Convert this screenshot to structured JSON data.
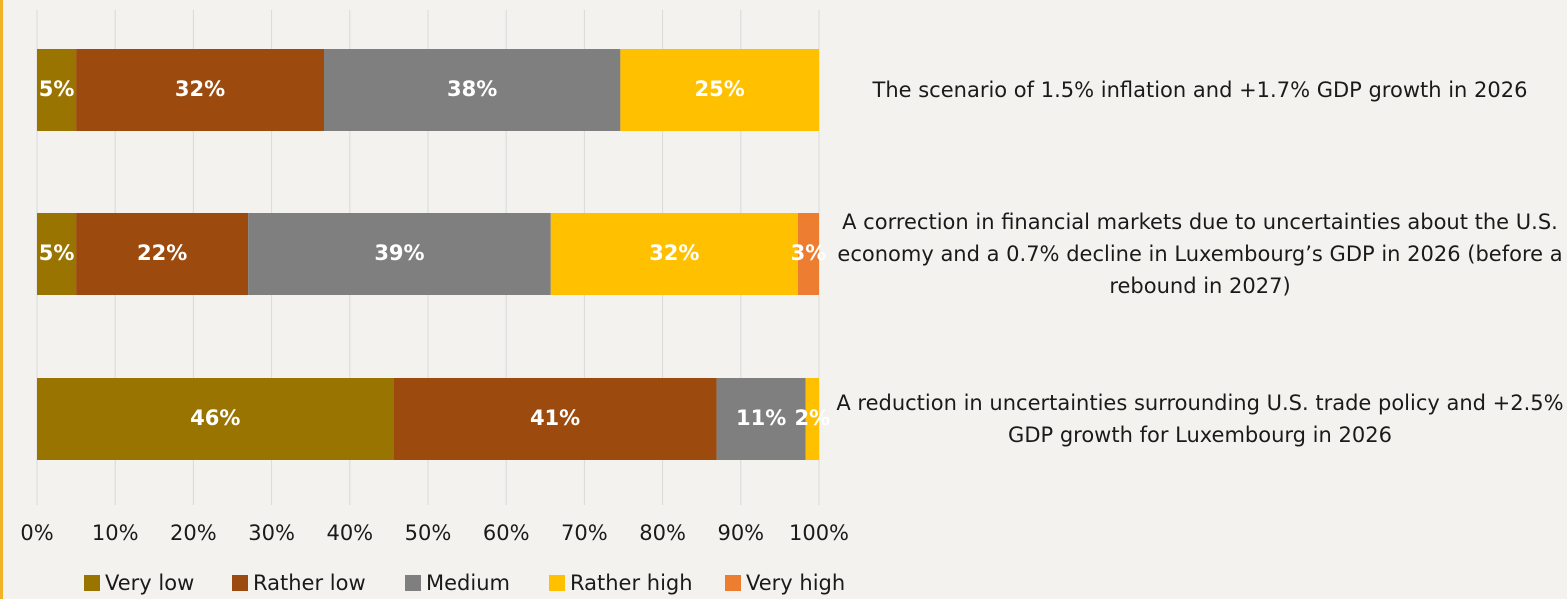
{
  "chart_data": {
    "type": "stacked-barh",
    "categories": [
      "The scenario of 1.5% inflation and +1.7% GDP growth in 2026",
      "A correction in financial markets due to uncertainties about the U.S. economy and a 0.7% decline in Luxembourg’s GDP in 2026 (before a rebound in 2027)",
      "A reduction in uncertainties surrounding U.S. trade policy and +2.5% GDP growth for Luxembourg in 2026"
    ],
    "series": [
      {
        "name": "Very low",
        "color": "#9a7400",
        "values": [
          5,
          5,
          45.6
        ],
        "value_labels": [
          "5%",
          "5%",
          "46%"
        ]
      },
      {
        "name": "Rather low",
        "color": "#9c4a0e",
        "values": [
          31.7,
          22,
          41.3
        ],
        "value_labels": [
          "32%",
          "22%",
          "41%"
        ]
      },
      {
        "name": "Medium",
        "color": "#7f7f7f",
        "values": [
          37.9,
          38.7,
          11.4
        ],
        "value_labels": [
          "38%",
          "39%",
          "11%"
        ]
      },
      {
        "name": "Rather high",
        "color": "#ffc000",
        "values": [
          25.4,
          31.6,
          1.7
        ],
        "value_labels": [
          "25%",
          "32%",
          "2%"
        ]
      },
      {
        "name": "Very high",
        "color": "#ed7d31",
        "values": [
          null,
          2.7,
          null
        ],
        "value_labels": [
          null,
          "3%",
          null
        ]
      }
    ],
    "xlim": [
      0,
      100
    ],
    "xticks": [
      {
        "value": 0,
        "label": "0%"
      },
      {
        "value": 10,
        "label": "10%"
      },
      {
        "value": 20,
        "label": "20%"
      },
      {
        "value": 30,
        "label": "30%"
      },
      {
        "value": 40,
        "label": "40%"
      },
      {
        "value": 50,
        "label": "50%"
      },
      {
        "value": 60,
        "label": "60%"
      },
      {
        "value": 70,
        "label": "70%"
      },
      {
        "value": 80,
        "label": "80%"
      },
      {
        "value": 90,
        "label": "90%"
      },
      {
        "value": 100,
        "label": "100%"
      }
    ],
    "grid": true,
    "legend": "bottom"
  }
}
